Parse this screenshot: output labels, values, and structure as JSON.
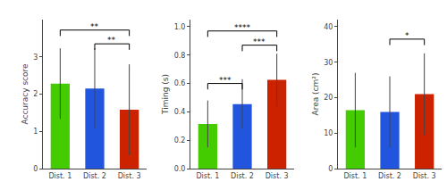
{
  "chart_data": [
    {
      "type": "bar",
      "ylabel": "Accuracy score",
      "categories": [
        "Dist. 1",
        "Dist. 2",
        "Dist. 3"
      ],
      "values": [
        2.28,
        2.15,
        1.58
      ],
      "errors": [
        0.95,
        1.08,
        1.22
      ],
      "colors": [
        "#44cc00",
        "#2255dd",
        "#cc2200"
      ],
      "ylim": [
        0,
        4.0
      ],
      "yticks": [
        0,
        1,
        2,
        3
      ],
      "grid": false,
      "annotations": [
        {
          "from": "Dist. 1",
          "to": "Dist. 3",
          "text": "**",
          "y": 3.72
        },
        {
          "from": "Dist. 2",
          "to": "Dist. 3",
          "text": "**",
          "y": 3.35
        }
      ]
    },
    {
      "type": "bar",
      "ylabel": "Timing (s)",
      "categories": [
        "Dist. 1",
        "Dist. 2",
        "Dist. 3"
      ],
      "values": [
        0.315,
        0.455,
        0.625
      ],
      "errors": [
        0.165,
        0.175,
        0.185
      ],
      "colors": [
        "#44cc00",
        "#2255dd",
        "#cc2200"
      ],
      "ylim": [
        0,
        1.05
      ],
      "yticks": [
        {
          "value": 0.0,
          "label": "0.0"
        },
        0.2,
        0.4,
        0.6,
        0.8,
        {
          "value": 1.0,
          "label": "1.0"
        }
      ],
      "grid": false,
      "annotations": [
        {
          "from": "Dist. 1",
          "to": "Dist. 3",
          "text": "****",
          "y": 0.97
        },
        {
          "from": "Dist. 2",
          "to": "Dist. 3",
          "text": "***",
          "y": 0.87
        },
        {
          "from": "Dist. 1",
          "to": "Dist. 2",
          "text": "***",
          "y": 0.6
        }
      ]
    },
    {
      "type": "bar",
      "ylabel": "Area (cm²)",
      "categories": [
        "Dist. 1",
        "Dist. 2",
        "Dist. 3"
      ],
      "values": [
        16.5,
        16.0,
        21.0
      ],
      "errors": [
        10.5,
        10.0,
        11.5
      ],
      "colors": [
        "#44cc00",
        "#2255dd",
        "#cc2200"
      ],
      "ylim": [
        0,
        42
      ],
      "yticks": [
        0,
        10,
        20,
        30,
        40
      ],
      "grid": false,
      "annotations": [
        {
          "from": "Dist. 2",
          "to": "Dist. 3",
          "text": "*",
          "y": 36.5
        }
      ]
    }
  ]
}
